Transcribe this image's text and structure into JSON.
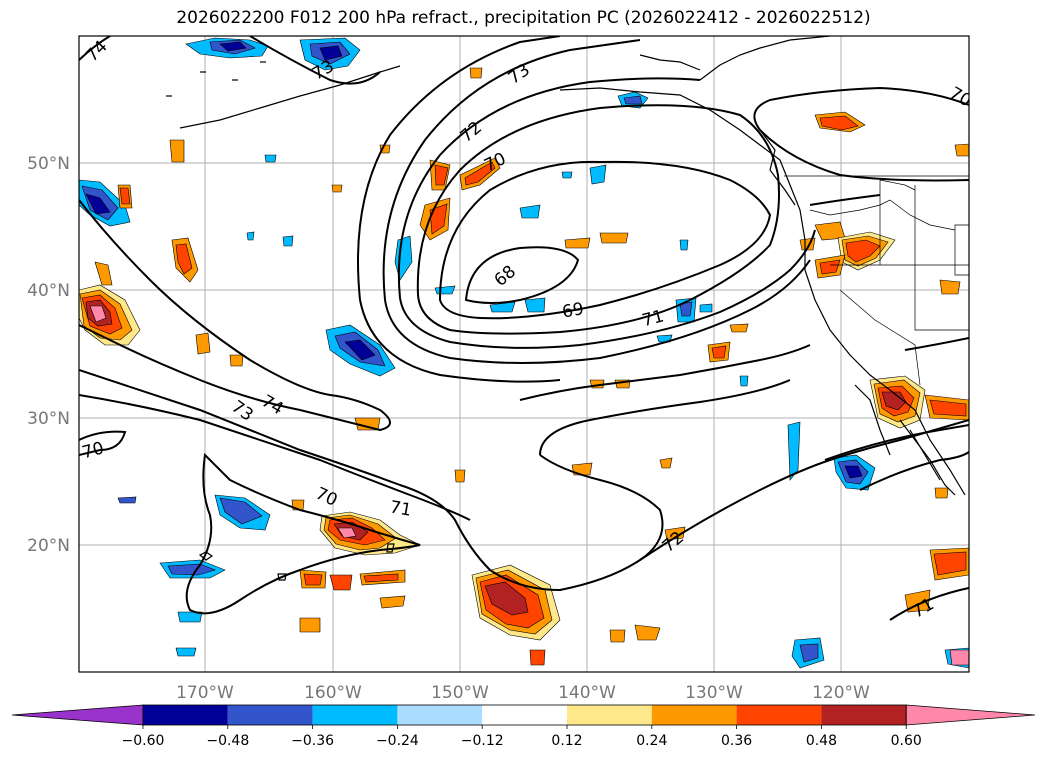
{
  "title": "2026022200 F012 200 hPa refract., precipitation PC (2026022412 - 2026022512)",
  "latitude_labels": [
    "50°N",
    "40°N",
    "30°N",
    "20°N"
  ],
  "longitude_labels": [
    "170°W",
    "160°W",
    "150°W",
    "140°W",
    "130°W",
    "120°W"
  ],
  "contour_labels": [
    "74",
    "73",
    "72",
    "70",
    "68",
    "69",
    "71",
    "74",
    "73",
    "70",
    "70",
    "71",
    "72",
    "71",
    "70"
  ],
  "colorbar": {
    "tick_labels": [
      "−0.60",
      "−0.48",
      "−0.36",
      "−0.24",
      "−0.12",
      "0.12",
      "0.24",
      "0.36",
      "0.48",
      "0.60"
    ],
    "colors": [
      "#9933cc",
      "#000099",
      "#3355cc",
      "#00bbff",
      "#aaddff",
      "#ffffff",
      "#ffe88a",
      "#ff9900",
      "#ff4400",
      "#b22222",
      "#ff88aa"
    ]
  },
  "precip_colors": {
    "neg_light": "#aaddff",
    "neg_mid": "#00bbff",
    "neg_blue": "#3355cc",
    "neg_dark": "#000099",
    "pos_light": "#ffe88a",
    "pos_orange": "#ff9900",
    "pos_red": "#ff4400",
    "pos_dark": "#b22222",
    "pos_pink": "#ff88aa"
  }
}
